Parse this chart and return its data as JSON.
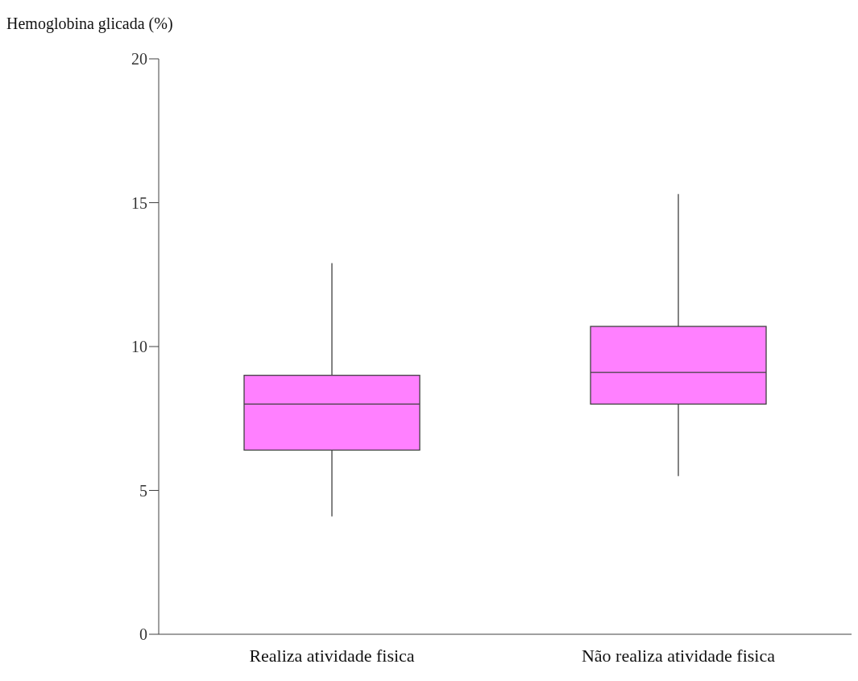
{
  "chart_data": {
    "type": "box",
    "ylabel": "Hemoglobina glicada (%)",
    "categories": [
      "Realiza atividade fisica",
      "Não realiza atividade fisica"
    ],
    "color": "#ff80ff",
    "boxes": [
      {
        "low": 4.1,
        "q1": 6.4,
        "median": 8.0,
        "q3": 9.0,
        "high": 12.9
      },
      {
        "low": 5.5,
        "q1": 8.0,
        "median": 9.1,
        "q3": 10.7,
        "high": 15.3
      }
    ],
    "ylim": [
      0,
      20
    ],
    "yticks": [
      0,
      5,
      10,
      15,
      20
    ],
    "grid": false
  }
}
